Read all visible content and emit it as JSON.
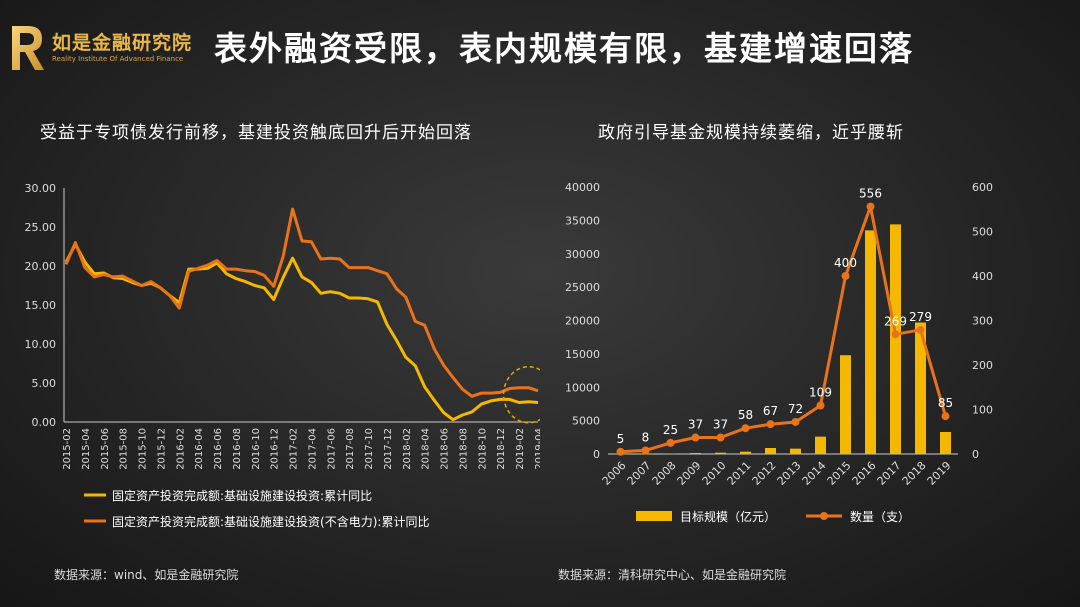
{
  "logo": {
    "cn": "如是金融研究院",
    "en": "Reality Institute Of Advanced Finance"
  },
  "title": "表外融资受限，表内规模有限，基建增速回落",
  "left": {
    "subtitle": "受益于专项债发行前移，基建投资触底回升后开始回落",
    "source": "数据来源：wind、如是金融研究院"
  },
  "right": {
    "subtitle": "政府引导基金规模持续萎缩，近乎腰斩",
    "source": "数据来源：清科研究中心、如是金融研究院"
  },
  "colors": {
    "yellow": "#f5b800",
    "orange": "#e8731a",
    "axis": "#cccccc"
  },
  "chart_data": [
    {
      "type": "line",
      "ylim": [
        0,
        30
      ],
      "yticks": [
        "0.00",
        "5.00",
        "10.00",
        "15.00",
        "20.00",
        "25.00",
        "30.00"
      ],
      "categories": [
        "2015-02",
        "2015-03",
        "2015-04",
        "2015-05",
        "2015-06",
        "2015-07",
        "2015-08",
        "2015-09",
        "2015-10",
        "2015-11",
        "2015-12",
        "2016-01",
        "2016-02",
        "2016-03",
        "2016-04",
        "2016-05",
        "2016-06",
        "2016-07",
        "2016-08",
        "2016-09",
        "2016-10",
        "2016-11",
        "2016-12",
        "2017-01",
        "2017-02",
        "2017-03",
        "2017-04",
        "2017-05",
        "2017-06",
        "2017-07",
        "2017-08",
        "2017-09",
        "2017-10",
        "2017-11",
        "2017-12",
        "2018-01",
        "2018-02",
        "2018-03",
        "2018-04",
        "2018-05",
        "2018-06",
        "2018-07",
        "2018-08",
        "2018-09",
        "2018-10",
        "2018-11",
        "2018-12",
        "2019-01",
        "2019-02",
        "2019-03",
        "2019-04"
      ],
      "xtick_labels": [
        "2015-02",
        "2015-04",
        "2015-06",
        "2015-08",
        "2015-10",
        "2015-12",
        "2016-02",
        "2016-04",
        "2016-06",
        "2016-08",
        "2016-10",
        "2016-12",
        "2017-02",
        "2017-04",
        "2017-06",
        "2017-08",
        "2017-10",
        "2017-12",
        "2018-02",
        "2018-04",
        "2018-06",
        "2018-08",
        "2018-10",
        "2018-12",
        "2019-02",
        "2019-04"
      ],
      "series": [
        {
          "name": "固定资产投资完成额:基础设施建设投资:累计同比",
          "color": "#f5b800",
          "values": [
            20.5,
            22.8,
            20.5,
            19.0,
            19.1,
            18.5,
            18.4,
            17.9,
            17.5,
            17.8,
            17.2,
            16.2,
            15.3,
            19.6,
            19.6,
            19.7,
            20.4,
            19.0,
            18.4,
            18.0,
            17.5,
            17.2,
            15.7,
            18.5,
            21.0,
            18.6,
            17.9,
            16.5,
            16.7,
            16.5,
            15.9,
            15.9,
            15.8,
            15.4,
            12.5,
            10.5,
            8.3,
            7.2,
            4.5,
            2.8,
            1.2,
            0.3,
            0.9,
            1.3,
            2.3,
            2.7,
            2.9,
            2.9,
            2.5,
            2.6,
            2.5
          ]
        },
        {
          "name": "固定资产投资完成额:基础设施建设投资(不含电力):累计同比",
          "color": "#e8731a",
          "values": [
            20.2,
            23.0,
            19.8,
            18.6,
            18.9,
            18.6,
            18.7,
            18.1,
            17.5,
            18.0,
            17.2,
            16.2,
            14.6,
            19.3,
            19.7,
            20.1,
            20.7,
            19.6,
            19.6,
            19.4,
            19.3,
            18.8,
            17.4,
            21.2,
            27.3,
            23.2,
            23.1,
            20.9,
            21.0,
            20.9,
            19.8,
            19.8,
            19.8,
            19.4,
            19.0,
            17.1,
            16.0,
            12.9,
            12.4,
            9.4,
            7.3,
            5.7,
            4.2,
            3.3,
            3.7,
            3.7,
            3.8,
            4.3,
            4.4,
            4.4,
            4.0
          ]
        }
      ]
    },
    {
      "type": "bar+line",
      "categories": [
        "2006",
        "2007",
        "2008",
        "2009",
        "2010",
        "2011",
        "2012",
        "2013",
        "2014",
        "2015",
        "2016",
        "2017",
        "2018",
        "2019"
      ],
      "y_left": {
        "lim": [
          0,
          40000
        ],
        "ticks": [
          "0",
          "5000",
          "10000",
          "15000",
          "20000",
          "25000",
          "30000",
          "35000",
          "40000"
        ]
      },
      "y_right": {
        "lim": [
          0,
          600
        ],
        "ticks": [
          "0",
          "100",
          "200",
          "300",
          "400",
          "500",
          "600"
        ]
      },
      "series": [
        {
          "name": "目标规模（亿元）",
          "type": "bar",
          "axis": "left",
          "color": "#f5b800",
          "values": [
            20,
            30,
            60,
            150,
            200,
            350,
            900,
            800,
            2600,
            14800,
            33500,
            34400,
            19700,
            3300
          ]
        },
        {
          "name": "数量（支）",
          "type": "line",
          "axis": "right",
          "color": "#e8731a",
          "values": [
            5,
            8,
            25,
            37,
            37,
            58,
            67,
            72,
            109,
            400,
            556,
            269,
            279,
            85
          ],
          "labels": [
            "5",
            "8",
            "25",
            "37",
            "37",
            "58",
            "67",
            "72",
            "109",
            "400",
            "556",
            "269",
            "279",
            "85"
          ]
        }
      ]
    }
  ]
}
